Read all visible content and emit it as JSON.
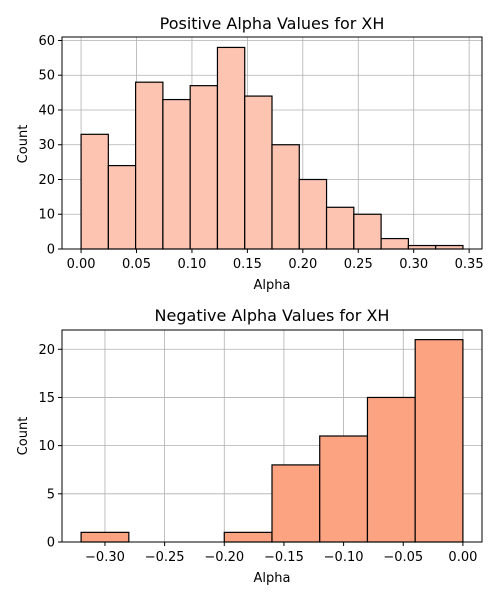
{
  "chart_data": [
    {
      "type": "bar",
      "title": "Positive Alpha Values for XH",
      "xlabel": "Alpha",
      "ylabel": "Count",
      "bin_edges": [
        0.0,
        0.0246,
        0.0492,
        0.0738,
        0.0984,
        0.123,
        0.1476,
        0.1722,
        0.1968,
        0.2214,
        0.246,
        0.2706,
        0.2952,
        0.3198,
        0.3444
      ],
      "values": [
        33,
        24,
        48,
        43,
        47,
        58,
        44,
        30,
        20,
        12,
        10,
        3,
        1,
        1
      ],
      "xlim": [
        -0.0172,
        0.3616
      ],
      "ylim": [
        0,
        61
      ],
      "xticks": [
        0.0,
        0.05,
        0.1,
        0.15,
        0.2,
        0.25,
        0.3,
        0.35
      ],
      "xtick_labels": [
        "0.00",
        "0.05",
        "0.10",
        "0.15",
        "0.20",
        "0.25",
        "0.30",
        "0.35"
      ],
      "yticks": [
        0,
        10,
        20,
        30,
        40,
        50,
        60
      ],
      "ytick_labels": [
        "0",
        "10",
        "20",
        "30",
        "40",
        "50",
        "60"
      ],
      "grid": true,
      "bar_color": "#fcc4b1",
      "edge_color": "#000000"
    },
    {
      "type": "bar",
      "title": "Negative Alpha Values for XH",
      "xlabel": "Alpha",
      "ylabel": "Count",
      "bin_edges": [
        -0.32,
        -0.28,
        -0.24,
        -0.2,
        -0.16,
        -0.12,
        -0.08,
        -0.04,
        0.0
      ],
      "values": [
        1,
        0,
        0,
        1,
        8,
        11,
        15,
        21
      ],
      "xlim": [
        -0.336,
        0.016
      ],
      "ylim": [
        0,
        22
      ],
      "xticks": [
        -0.3,
        -0.25,
        -0.2,
        -0.15,
        -0.1,
        -0.05,
        0.0
      ],
      "xtick_labels": [
        "−0.30",
        "−0.25",
        "−0.20",
        "−0.15",
        "−0.10",
        "−0.05",
        "0.00"
      ],
      "yticks": [
        0,
        5,
        10,
        15,
        20
      ],
      "ytick_labels": [
        "0",
        "5",
        "10",
        "15",
        "20"
      ],
      "grid": true,
      "bar_color": "#fca482",
      "edge_color": "#000000"
    }
  ]
}
